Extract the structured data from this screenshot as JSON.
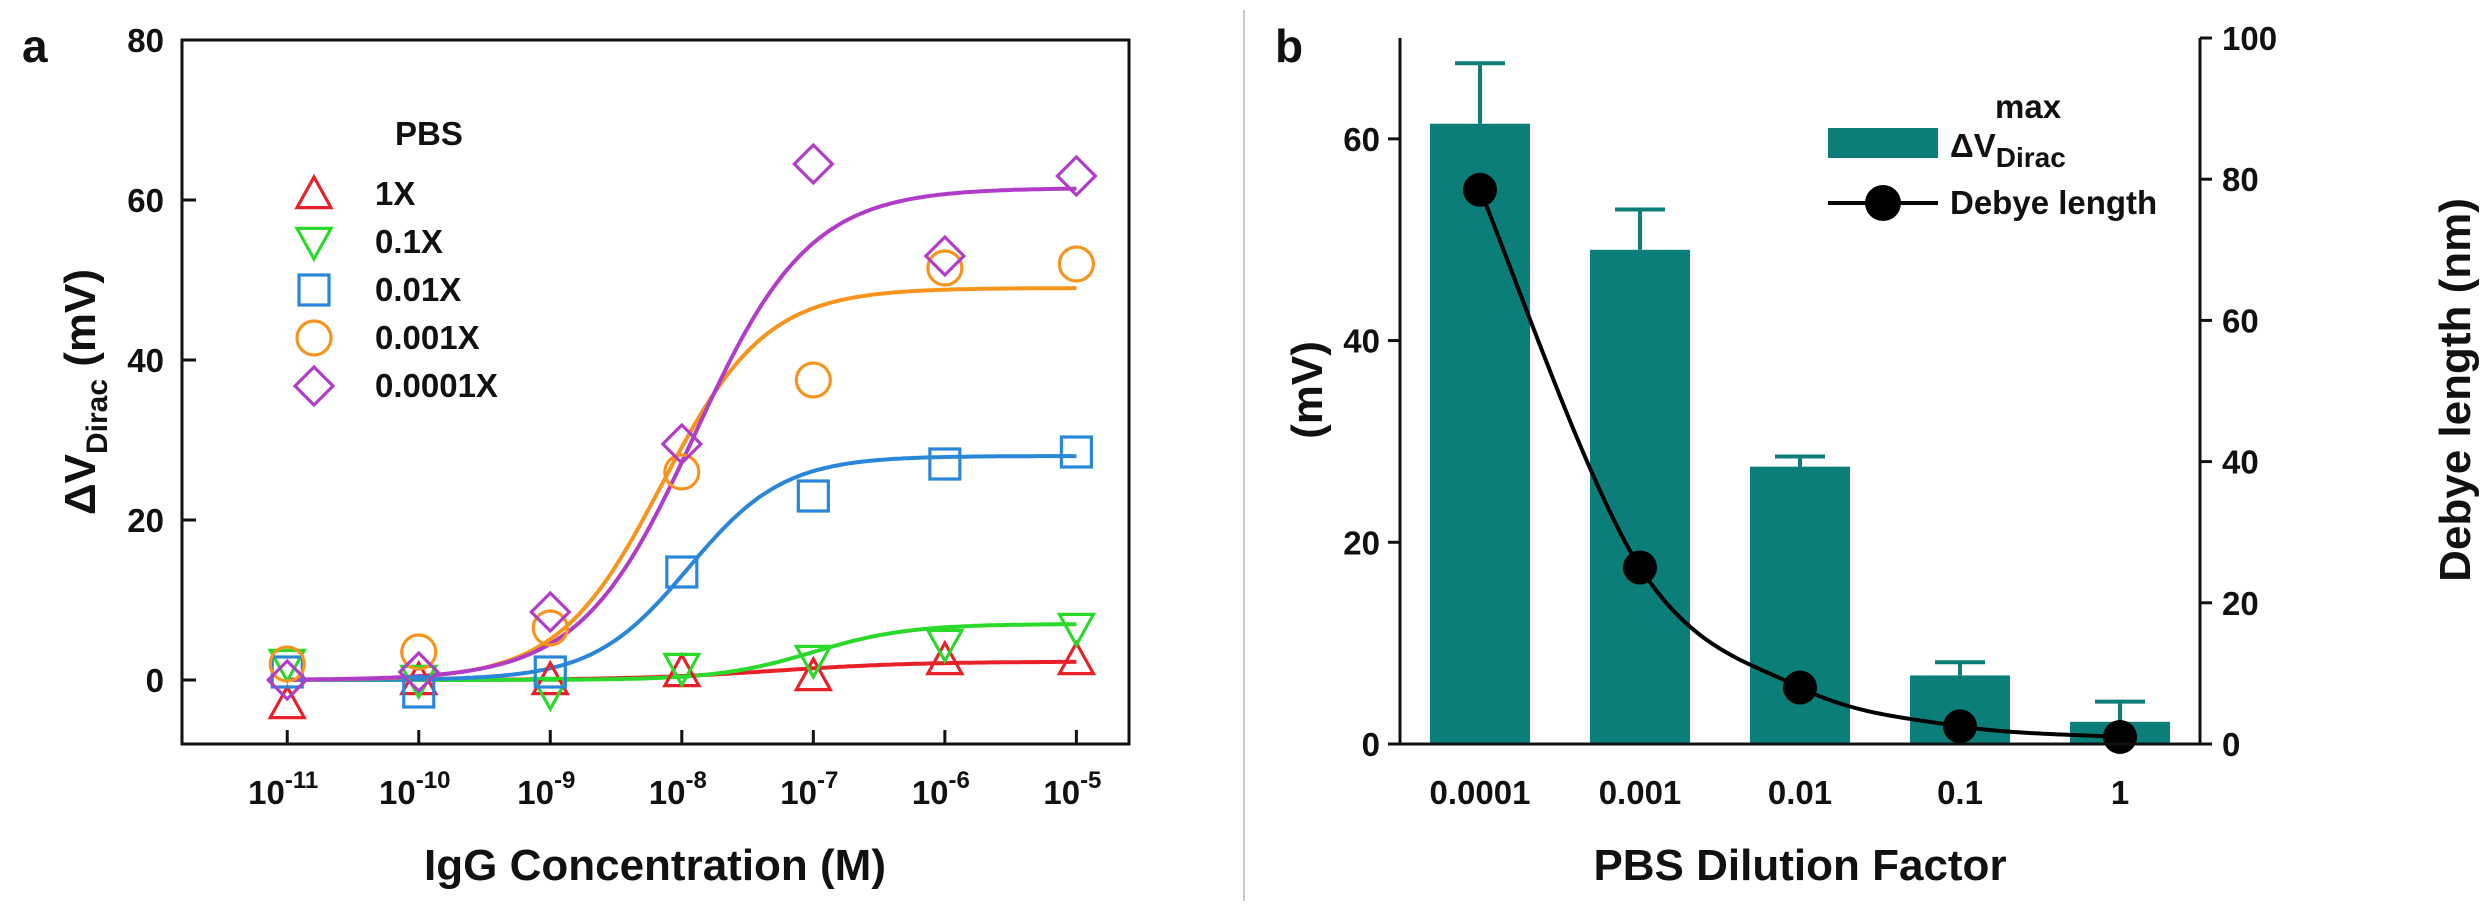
{
  "chart_data": [
    {
      "panel": "a",
      "type": "scatter",
      "xscale": "log",
      "x_tick_labels": [
        {
          "base": "10",
          "exp": "-11"
        },
        {
          "base": "10",
          "exp": "-10"
        },
        {
          "base": "10",
          "exp": "-9"
        },
        {
          "base": "10",
          "exp": "-8"
        },
        {
          "base": "10",
          "exp": "-7"
        },
        {
          "base": "10",
          "exp": "-6"
        },
        {
          "base": "10",
          "exp": "-5"
        }
      ],
      "x_exponents": [
        -11,
        -10,
        -9,
        -8,
        -7,
        -6,
        -5
      ],
      "xlim_exp": [
        -11.8,
        -4.6
      ],
      "xlabel": "IgG Concentration (M)",
      "ylabel_main": "ΔV",
      "ylabel_sub": "Dirac",
      "ylabel_unit": " (mV)",
      "ylim": [
        -8,
        80
      ],
      "yticks": [
        0,
        20,
        40,
        60,
        80
      ],
      "legend_title": "PBS",
      "series": [
        {
          "name": "1X",
          "marker": "triangle-up",
          "color": "#e8202a",
          "x_exp": [
            -11,
            -10,
            -9,
            -8,
            -7,
            -6,
            -5
          ],
          "values": [
            -3,
            0,
            0,
            1,
            0.5,
            2.5,
            2.5
          ],
          "fit": {
            "bottom": 0,
            "top": 2.3,
            "logec50": -7.3,
            "hill": 0.8
          }
        },
        {
          "name": "0.1X",
          "marker": "triangle-down",
          "color": "#2bd92b",
          "x_exp": [
            -11,
            -10,
            -9,
            -8,
            -7,
            -6,
            -5
          ],
          "values": [
            2,
            0,
            -1.5,
            1.5,
            2.5,
            4.5,
            6.5
          ],
          "fit": {
            "bottom": 0,
            "top": 7,
            "logec50": -7.0,
            "hill": 1.2
          }
        },
        {
          "name": "0.01X",
          "marker": "square",
          "color": "#2a86d8",
          "x_exp": [
            -11,
            -10,
            -9,
            -8,
            -7,
            -6,
            -5
          ],
          "values": [
            1,
            -1.5,
            1,
            13.5,
            23,
            27,
            28.5
          ],
          "fit": {
            "bottom": 0,
            "top": 28,
            "logec50": -7.95,
            "hill": 1.2
          }
        },
        {
          "name": "0.001X",
          "marker": "circle",
          "color": "#f7941d",
          "x_exp": [
            -11,
            -10,
            -9,
            -8,
            -7,
            -6,
            -5
          ],
          "values": [
            2,
            3.5,
            6.5,
            26,
            37.5,
            51.5,
            52
          ],
          "fit": {
            "bottom": 0,
            "top": 49,
            "logec50": -8.15,
            "hill": 1.1
          }
        },
        {
          "name": "0.0001X",
          "marker": "diamond",
          "color": "#b03cc7",
          "x_exp": [
            -11,
            -10,
            -9,
            -8,
            -7,
            -6,
            -5
          ],
          "values": [
            0,
            1,
            8.5,
            29.5,
            64.5,
            53,
            63
          ],
          "fit": {
            "bottom": 0,
            "top": 61.5,
            "logec50": -7.9,
            "hill": 1.0
          }
        }
      ]
    },
    {
      "panel": "b",
      "type": "bar",
      "categories": [
        "0.0001",
        "0.001",
        "0.01",
        "0.1",
        "1"
      ],
      "xlabel": "PBS Dilution Factor",
      "ylabel_left": "(mV)",
      "ylabel_right": "Debye length (nm)",
      "ylim_left": [
        0,
        70
      ],
      "yticks_left": [
        0,
        20,
        40,
        60
      ],
      "ylim_right": [
        0,
        100
      ],
      "yticks_right": [
        0,
        20,
        40,
        60,
        80,
        100
      ],
      "bar_color": "#0b7e7a",
      "bars": {
        "name_main": "ΔV",
        "name_sup": "max",
        "name_sub": "Dirac",
        "values": [
          61.5,
          49,
          27.5,
          6.8,
          2.2
        ],
        "errors": [
          6,
          4,
          1,
          1.3,
          2
        ]
      },
      "line": {
        "name": "Debye length",
        "color": "#000000",
        "values": [
          78.5,
          25,
          8,
          2.5,
          1
        ]
      }
    }
  ]
}
